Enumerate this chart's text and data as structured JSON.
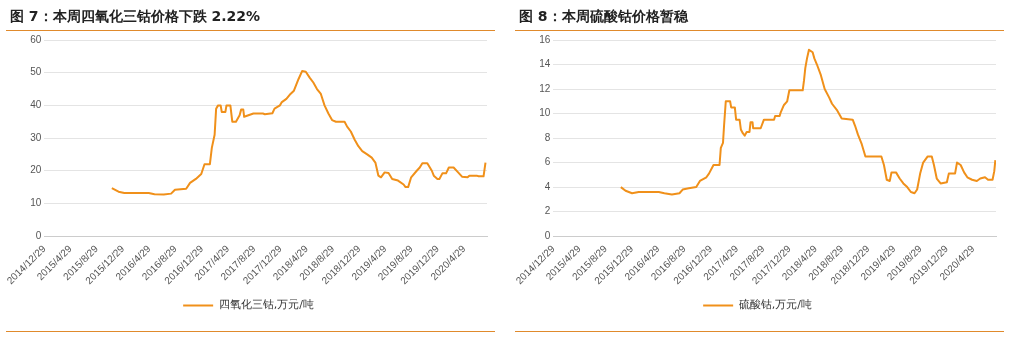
{
  "chart_data": [
    {
      "type": "line",
      "title": "图 7：本周四氧化三钴价格下跌 2.22%",
      "legend": "bottom",
      "grid": "y",
      "marker": "none",
      "xlim": [
        "2014-12-29",
        "2020-08-13"
      ],
      "xticks": [
        {
          "value": "2014-12-29",
          "label": "2014/12/29"
        },
        {
          "value": "2015-04-29",
          "label": "2015/4/29"
        },
        {
          "value": "2015-08-29",
          "label": "2015/8/29"
        },
        {
          "value": "2015-12-29",
          "label": "2015/12/29"
        },
        {
          "value": "2016-04-29",
          "label": "2016/4/29"
        },
        {
          "value": "2016-08-29",
          "label": "2016/8/29"
        },
        {
          "value": "2016-12-29",
          "label": "2016/12/29"
        },
        {
          "value": "2017-04-29",
          "label": "2017/4/29"
        },
        {
          "value": "2017-08-29",
          "label": "2017/8/29"
        },
        {
          "value": "2017-12-29",
          "label": "2017/12/29"
        },
        {
          "value": "2018-04-29",
          "label": "2018/4/29"
        },
        {
          "value": "2018-08-29",
          "label": "2018/8/29"
        },
        {
          "value": "2018-12-29",
          "label": "2018/12/29"
        },
        {
          "value": "2019-04-29",
          "label": "2019/4/29"
        },
        {
          "value": "2019-08-29",
          "label": "2019/8/29"
        },
        {
          "value": "2019-12-29",
          "label": "2019/12/29"
        },
        {
          "value": "2020-04-29",
          "label": "2020/4/29"
        }
      ],
      "ylim": [
        0,
        60
      ],
      "yticks": [
        0,
        10,
        20,
        30,
        40,
        50,
        60
      ],
      "series": [
        {
          "name": "四氧化三钴,万元/吨",
          "color": "#f0901a",
          "x": [
            "2015-11-07",
            "2015-12-08",
            "2016-01-04",
            "2016-04-26",
            "2016-05-23",
            "2016-07-05",
            "2016-08-08",
            "2016-08-26",
            "2016-10-17",
            "2016-11-04",
            "2016-12-01",
            "2016-12-26",
            "2017-01-10",
            "2017-02-04",
            "2017-02-13",
            "2017-02-26",
            "2017-03-05",
            "2017-03-14",
            "2017-03-26",
            "2017-03-31",
            "2017-04-17",
            "2017-04-22",
            "2017-05-10",
            "2017-05-19",
            "2017-06-05",
            "2017-06-22",
            "2017-06-29",
            "2017-07-09",
            "2017-07-13",
            "2017-08-25",
            "2017-10-08",
            "2017-10-17",
            "2017-11-21",
            "2017-12-01",
            "2017-12-26",
            "2018-01-04",
            "2018-01-25",
            "2018-02-13",
            "2018-03-01",
            "2018-03-22",
            "2018-04-08",
            "2018-04-25",
            "2018-05-13",
            "2018-05-30",
            "2018-06-16",
            "2018-07-04",
            "2018-07-21",
            "2018-08-08",
            "2018-08-25",
            "2018-09-12",
            "2018-10-22",
            "2018-11-03",
            "2018-11-20",
            "2018-12-08",
            "2018-12-25",
            "2019-01-12",
            "2019-02-04",
            "2019-02-25",
            "2019-03-14",
            "2019-03-28",
            "2019-04-09",
            "2019-04-26",
            "2019-05-14",
            "2019-05-31",
            "2019-06-27",
            "2019-07-23",
            "2019-08-01",
            "2019-08-13",
            "2019-08-27",
            "2019-09-22",
            "2019-10-06",
            "2019-10-18",
            "2019-11-10",
            "2019-12-01",
            "2019-12-10",
            "2019-12-27",
            "2020-01-05",
            "2020-01-19",
            "2020-02-05",
            "2020-02-18",
            "2020-03-11",
            "2020-04-01",
            "2020-04-19",
            "2020-05-15",
            "2020-05-23",
            "2020-06-26",
            "2020-07-05",
            "2020-07-28",
            "2020-08-06"
          ],
          "values": [
            14.7,
            13.6,
            13.2,
            13.2,
            12.8,
            12.7,
            13.0,
            14.2,
            14.5,
            16.3,
            17.5,
            19.0,
            22.0,
            22.0,
            27.0,
            31.0,
            39.0,
            40.0,
            40.0,
            38.0,
            38.0,
            40.0,
            40.0,
            35.0,
            35.0,
            37.0,
            38.7,
            38.7,
            36.5,
            37.5,
            37.5,
            37.3,
            37.6,
            39.0,
            40.0,
            41.0,
            42.0,
            43.5,
            44.5,
            48.0,
            50.5,
            50.3,
            48.5,
            47.0,
            45.0,
            43.5,
            40.0,
            37.5,
            35.5,
            35.0,
            35.0,
            33.5,
            32.0,
            29.5,
            27.5,
            26.0,
            25.0,
            24.0,
            22.5,
            18.5,
            18.0,
            19.5,
            19.3,
            17.5,
            17.0,
            15.8,
            15.0,
            15.0,
            18.0,
            20.0,
            21.0,
            22.3,
            22.3,
            20.0,
            18.5,
            17.5,
            17.5,
            19.2,
            19.2,
            21.0,
            21.0,
            19.5,
            18.2,
            18.0,
            18.5,
            18.5,
            18.3,
            18.3,
            22.5
          ]
        }
      ]
    },
    {
      "type": "line",
      "title": "图 8：本周硫酸钴价格暂稳",
      "legend": "bottom",
      "grid": "y",
      "marker": "none",
      "xlim": [
        "2014-12-29",
        "2020-08-13"
      ],
      "xticks": [
        {
          "value": "2014-12-29",
          "label": "2014/12/29"
        },
        {
          "value": "2015-04-29",
          "label": "2015/4/29"
        },
        {
          "value": "2015-08-29",
          "label": "2015/8/29"
        },
        {
          "value": "2015-12-29",
          "label": "2015/12/29"
        },
        {
          "value": "2016-04-29",
          "label": "2016/4/29"
        },
        {
          "value": "2016-08-29",
          "label": "2016/8/29"
        },
        {
          "value": "2016-12-29",
          "label": "2016/12/29"
        },
        {
          "value": "2017-04-29",
          "label": "2017/4/29"
        },
        {
          "value": "2017-08-29",
          "label": "2017/8/29"
        },
        {
          "value": "2017-12-29",
          "label": "2017/12/29"
        },
        {
          "value": "2018-04-29",
          "label": "2018/4/29"
        },
        {
          "value": "2018-08-29",
          "label": "2018/8/29"
        },
        {
          "value": "2018-12-29",
          "label": "2018/12/29"
        },
        {
          "value": "2019-04-29",
          "label": "2019/4/29"
        },
        {
          "value": "2019-08-29",
          "label": "2019/8/29"
        },
        {
          "value": "2019-12-29",
          "label": "2019/12/29"
        },
        {
          "value": "2020-04-29",
          "label": "2020/4/29"
        }
      ],
      "ylim": [
        0,
        16
      ],
      "yticks": [
        0,
        2,
        4,
        6,
        8,
        10,
        12,
        14,
        16
      ],
      "series": [
        {
          "name": "硫酸钴,万元/吨",
          "color": "#f0901a",
          "x": [
            "2015-11-07",
            "2015-11-29",
            "2015-12-29",
            "2016-01-29",
            "2016-05-01",
            "2016-05-27",
            "2016-07-01",
            "2016-08-05",
            "2016-08-20",
            "2016-09-17",
            "2016-10-22",
            "2016-11-08",
            "2016-12-08",
            "2016-12-20",
            "2017-01-10",
            "2017-02-07",
            "2017-02-13",
            "2017-02-23",
            "2017-02-28",
            "2017-03-08",
            "2017-03-28",
            "2017-04-02",
            "2017-04-19",
            "2017-04-25",
            "2017-05-11",
            "2017-05-17",
            "2017-05-26",
            "2017-06-04",
            "2017-06-13",
            "2017-06-26",
            "2017-07-01",
            "2017-07-10",
            "2017-07-13",
            "2017-08-17",
            "2017-09-01",
            "2017-10-18",
            "2017-10-23",
            "2017-11-13",
            "2017-11-18",
            "2017-12-03",
            "2017-12-18",
            "2017-12-28",
            "2018-02-28",
            "2018-03-06",
            "2018-03-12",
            "2018-03-20",
            "2018-03-29",
            "2018-04-15",
            "2018-04-23",
            "2018-05-05",
            "2018-05-22",
            "2018-06-10",
            "2018-07-01",
            "2018-07-14",
            "2018-08-05",
            "2018-08-28",
            "2018-10-18",
            "2018-10-29",
            "2018-11-11",
            "2018-11-29",
            "2018-12-16",
            "2019-02-28",
            "2019-03-12",
            "2019-03-25",
            "2019-04-08",
            "2019-04-16",
            "2019-05-07",
            "2019-05-24",
            "2019-06-10",
            "2019-06-28",
            "2019-07-15",
            "2019-08-01",
            "2019-08-13",
            "2019-08-27",
            "2019-09-10",
            "2019-10-01",
            "2019-10-20",
            "2019-10-30",
            "2019-11-12",
            "2019-11-30",
            "2019-12-29",
            "2020-01-07",
            "2020-02-05",
            "2020-02-14",
            "2020-03-02",
            "2020-03-18",
            "2020-04-02",
            "2020-04-24",
            "2020-05-16",
            "2020-06-01",
            "2020-06-23",
            "2020-07-07",
            "2020-07-28",
            "2020-08-05",
            "2020-08-10"
          ],
          "values": [
            4.0,
            3.7,
            3.5,
            3.6,
            3.6,
            3.5,
            3.4,
            3.5,
            3.8,
            3.9,
            4.0,
            4.5,
            4.8,
            5.1,
            5.8,
            5.8,
            7.2,
            7.6,
            9.0,
            11.0,
            11.0,
            10.5,
            10.5,
            9.5,
            9.5,
            8.7,
            8.4,
            8.2,
            8.5,
            8.5,
            9.3,
            9.3,
            8.8,
            8.8,
            9.5,
            9.5,
            9.8,
            9.8,
            10.1,
            10.7,
            11.0,
            11.9,
            11.9,
            12.7,
            13.7,
            14.5,
            15.2,
            15.0,
            14.5,
            14.0,
            13.2,
            12.0,
            11.3,
            10.8,
            10.3,
            9.6,
            9.5,
            9.0,
            8.3,
            7.5,
            6.5,
            6.5,
            5.8,
            4.6,
            4.5,
            5.2,
            5.2,
            4.7,
            4.3,
            4.0,
            3.6,
            3.5,
            3.8,
            5.1,
            6.0,
            6.5,
            6.5,
            5.8,
            4.7,
            4.3,
            4.4,
            5.1,
            5.1,
            6.0,
            5.8,
            5.2,
            4.8,
            4.6,
            4.5,
            4.7,
            4.8,
            4.6,
            4.6,
            5.3,
            6.2
          ]
        }
      ]
    }
  ]
}
